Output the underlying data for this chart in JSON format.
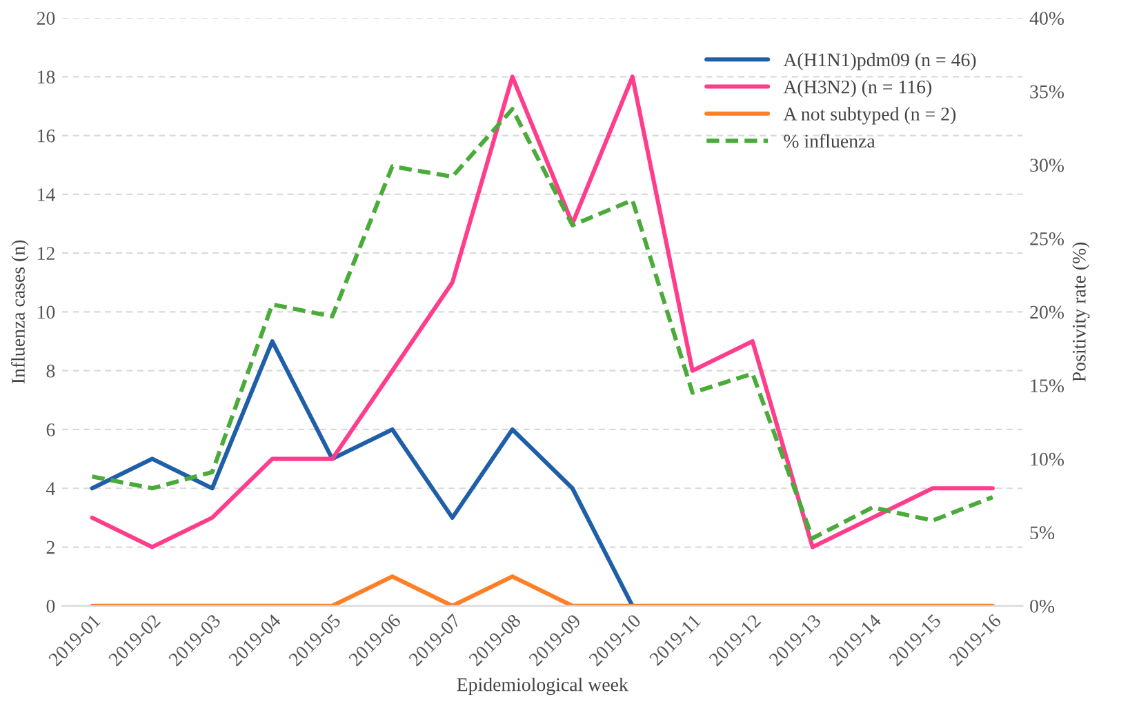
{
  "chart_data": {
    "type": "line",
    "xlabel": "Epidemiological week",
    "ylabel": "Influenza cases (n)",
    "y2label": "Positivity rate (%)",
    "categories": [
      "2019-01",
      "2019-02",
      "2019-03",
      "2019-04",
      "2019-05",
      "2019-06",
      "2019-07",
      "2019-08",
      "2019-09",
      "2019-10",
      "2019-11",
      "2019-12",
      "2019-13",
      "2019-14",
      "2019-15",
      "2019-16"
    ],
    "series": [
      {
        "name": "A(H1N1)pdm09 (n = 46)",
        "color": "#1f5fa8",
        "values": [
          4,
          5,
          4,
          9,
          5,
          6,
          3,
          6,
          4,
          0,
          null,
          null,
          null,
          null,
          null,
          null
        ]
      },
      {
        "name": "A(H3N2) (n = 116)",
        "color": "#ff3d8b",
        "values": [
          3,
          2,
          3,
          5,
          5,
          8,
          11,
          18,
          13,
          18,
          8,
          9,
          2,
          3,
          4,
          4
        ]
      },
      {
        "name": "A not subtyped (n = 2)",
        "color": "#ff7f27",
        "values": [
          0,
          0,
          0,
          0,
          0,
          1,
          0,
          1,
          0,
          0,
          0,
          0,
          0,
          0,
          0,
          0
        ]
      },
      {
        "name": "% influenza",
        "color": "#4aab3a",
        "axis": "y2",
        "line_style": "dashed",
        "values": [
          8.8,
          8.0,
          9.1,
          20.5,
          19.7,
          29.9,
          29.2,
          33.8,
          25.9,
          27.6,
          14.5,
          15.8,
          4.6,
          6.7,
          5.8,
          7.4
        ]
      }
    ],
    "ylim": [
      0,
      20
    ],
    "yticks": [
      0,
      2,
      4,
      6,
      8,
      10,
      12,
      14,
      16,
      18,
      20
    ],
    "y2lim": [
      0,
      40
    ],
    "y2ticks": [
      {
        "value": 0,
        "label": "0%"
      },
      {
        "value": 5,
        "label": "5%"
      },
      {
        "value": 10,
        "label": "10%"
      },
      {
        "value": 15,
        "label": "15%"
      },
      {
        "value": 20,
        "label": "20%"
      },
      {
        "value": 25,
        "label": "25%"
      },
      {
        "value": 30,
        "label": "30%"
      },
      {
        "value": 35,
        "label": "35%"
      },
      {
        "value": 40,
        "label": "40%"
      }
    ],
    "grid": "y",
    "legend": "top right",
    "marker": "none",
    "line_style": "solid"
  }
}
